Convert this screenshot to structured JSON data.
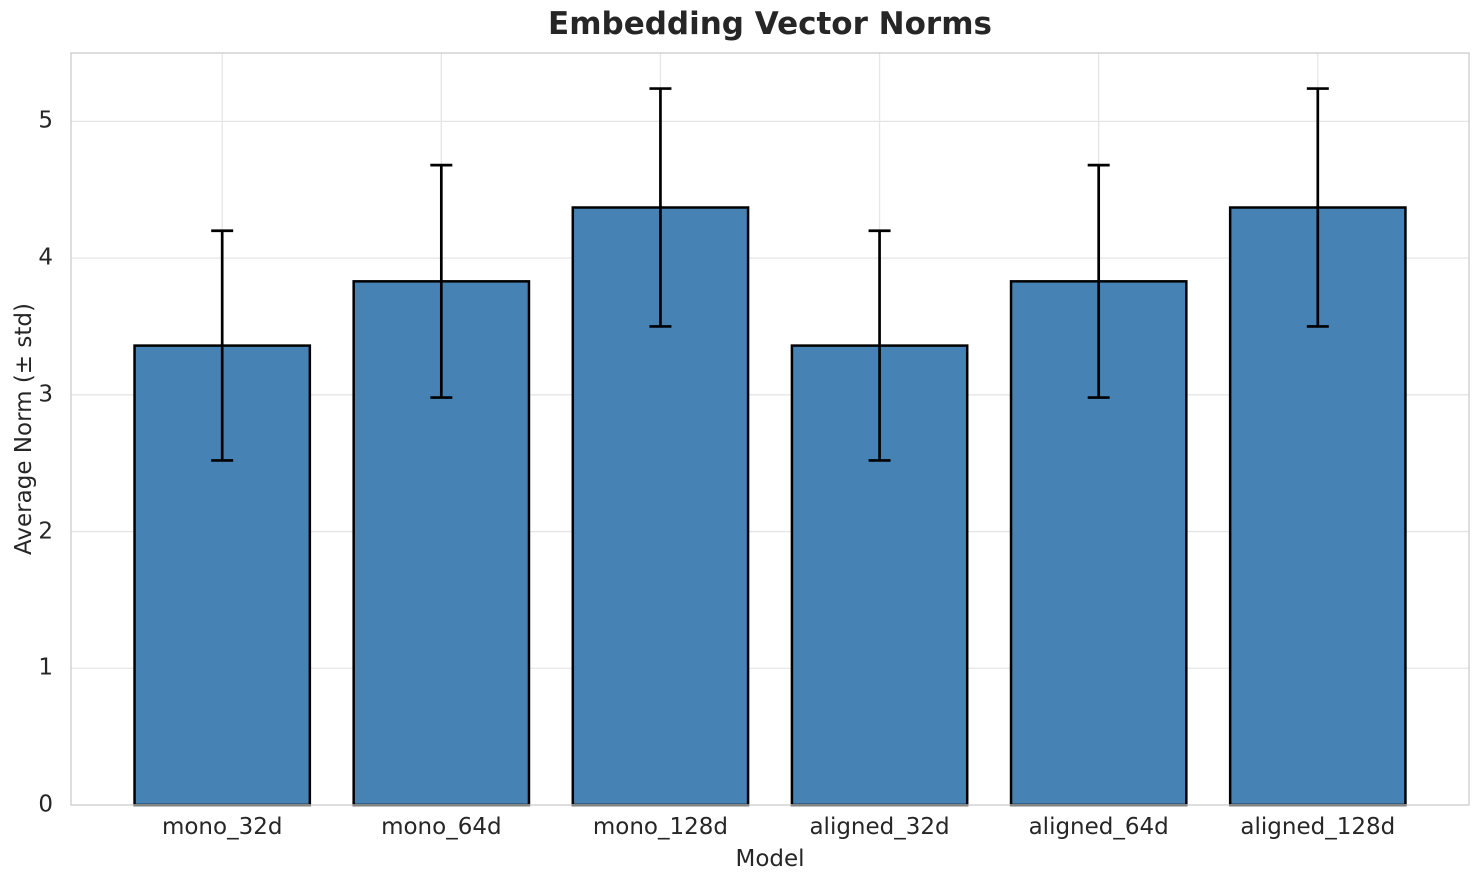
{
  "chart_data": {
    "type": "bar",
    "title": "Embedding Vector Norms",
    "xlabel": "Model",
    "ylabel": "Average Norm (± std)",
    "categories": [
      "mono_32d",
      "mono_64d",
      "mono_128d",
      "aligned_32d",
      "aligned_64d",
      "aligned_128d"
    ],
    "values": [
      3.36,
      3.83,
      4.37,
      3.36,
      3.83,
      4.37
    ],
    "errors": [
      0.84,
      0.85,
      0.87,
      0.84,
      0.85,
      0.87
    ],
    "ylim": [
      0,
      5.5
    ],
    "yticks": [
      0,
      1,
      2,
      3,
      4,
      5
    ],
    "grid": "both",
    "legend": "none",
    "colors": {
      "bar_fill": "#4682B4",
      "bar_edge": "#000000",
      "error_bar": "#000000",
      "grid_line": "#e6e6e6",
      "spine": "#cccccc",
      "text": "#262626",
      "background": "#ffffff"
    }
  }
}
